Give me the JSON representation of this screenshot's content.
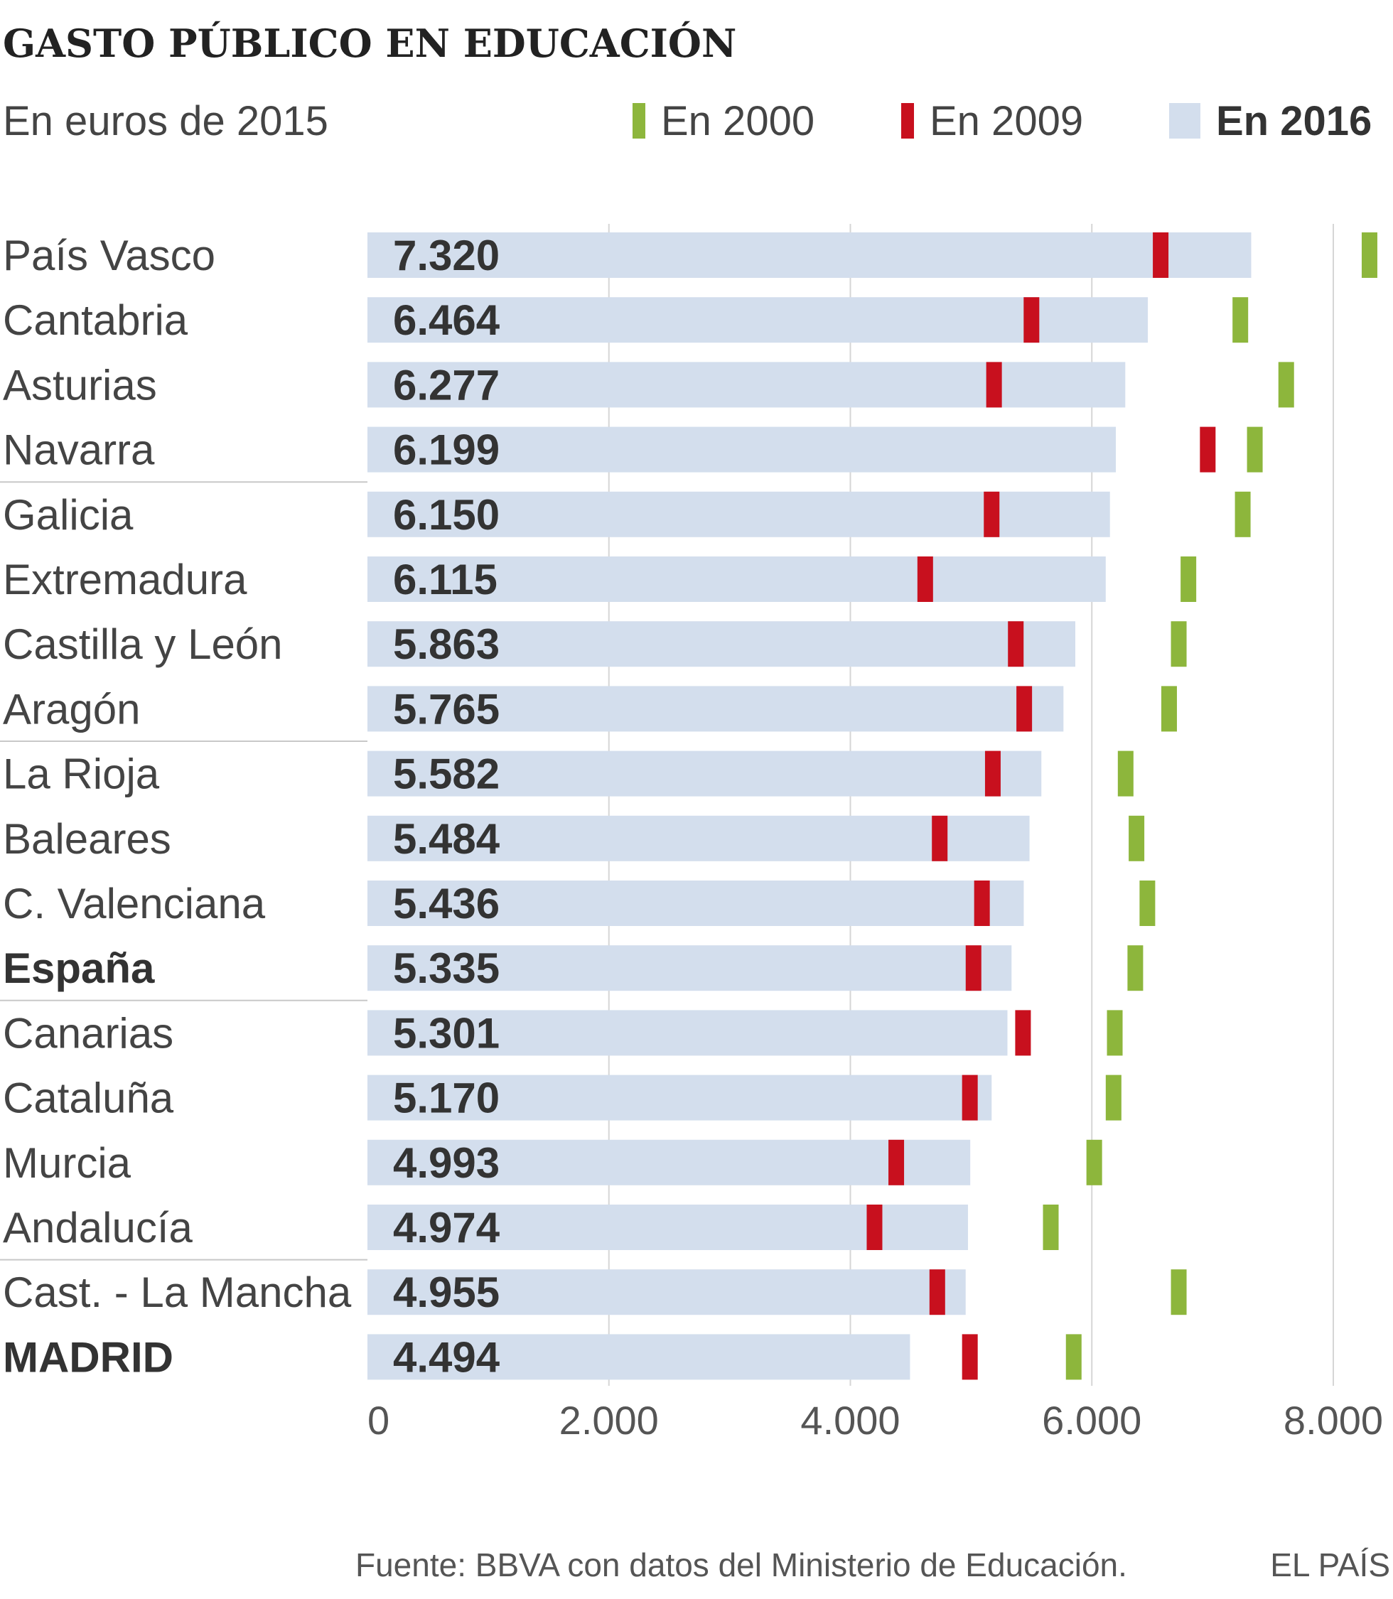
{
  "chart_data": {
    "type": "bar",
    "title": "GASTO PÚBLICO EN EDUCACIÓN",
    "subtitle": "En euros de 2015",
    "legend": {
      "placement": "top-right",
      "entries": [
        {
          "label": "En 2000",
          "color": "#8db63c",
          "mark": "tick"
        },
        {
          "label": "En 2009",
          "color": "#c8101e",
          "mark": "tick"
        },
        {
          "label": "En 2016",
          "color": "#d3deed",
          "mark": "bar",
          "bold": true
        }
      ]
    },
    "categories": [
      "País Vasco",
      "Cantabria",
      "Asturias",
      "Navarra",
      "Galicia",
      "Extremadura",
      "Castilla y León",
      "Aragón",
      "La Rioja",
      "Baleares",
      "C. Valenciana",
      "España",
      "Canarias",
      "Cataluña",
      "Murcia",
      "Andalucía",
      "Cast. - La Mancha",
      "MADRID"
    ],
    "bold_categories": [
      "España",
      "MADRID"
    ],
    "value_labels": [
      "7.320",
      "6.464",
      "6.277",
      "6.199",
      "6.150",
      "6.115",
      "5.863",
      "5.765",
      "5.582",
      "5.484",
      "5.436",
      "5.335",
      "5.301",
      "5.170",
      "4.993",
      "4.974",
      "4.955",
      "4.494"
    ],
    "series": [
      {
        "name": "En 2016",
        "color": "#d3deed",
        "values": [
          7320,
          6464,
          6277,
          6199,
          6150,
          6115,
          5863,
          5765,
          5582,
          5484,
          5436,
          5335,
          5301,
          5170,
          4993,
          4974,
          4955,
          4494
        ]
      },
      {
        "name": "En 2009",
        "color": "#c8101e",
        "values": [
          6570,
          5500,
          5190,
          6960,
          5170,
          4620,
          5370,
          5440,
          5180,
          4740,
          5090,
          5020,
          5430,
          4990,
          4380,
          4200,
          4720,
          4990
        ]
      },
      {
        "name": "En 2000",
        "color": "#8db63c",
        "values": [
          8300,
          7230,
          7610,
          7350,
          7250,
          6800,
          6720,
          6640,
          6280,
          6370,
          6460,
          6360,
          6190,
          6180,
          6020,
          5660,
          6720,
          5850
        ]
      }
    ],
    "xlim": [
      0,
      8000
    ],
    "xticks": [
      0,
      2000,
      4000,
      6000,
      8000
    ],
    "xtick_labels": [
      "0",
      "2.000",
      "4.000",
      "6.000",
      "8.000"
    ],
    "grid": true,
    "group_separators_after": [
      "Navarra",
      "Aragón",
      "España",
      "Andalucía"
    ],
    "source": "Fuente: BBVA con datos del Ministerio de Educación.",
    "credit": "EL PAÍS"
  }
}
